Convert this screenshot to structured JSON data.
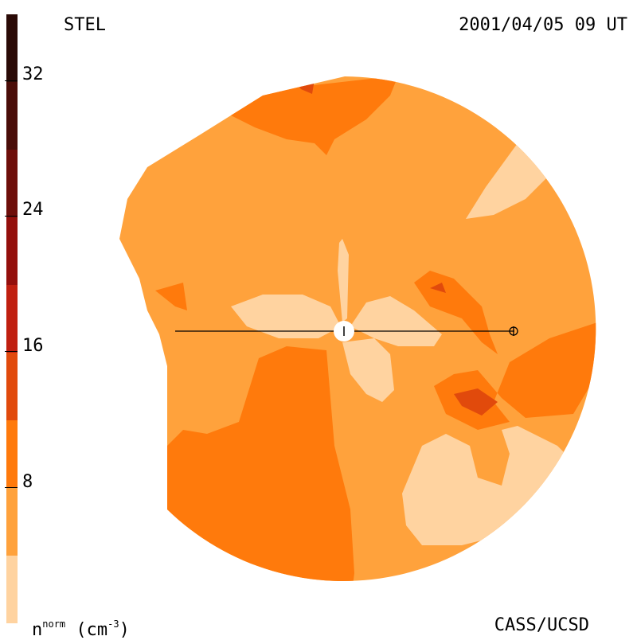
{
  "header": {
    "instrument": "STEL",
    "datetime": "2001/04/05 09 UT"
  },
  "footer": {
    "quantity_base": "n",
    "quantity_sup": "norm",
    "quantity_unit": "(cm",
    "quantity_unit_sup": "-3",
    "quantity_close": ")",
    "credit": "CASS/UCSD"
  },
  "colorbar": {
    "ticks": [
      "32",
      "24",
      "16",
      "8"
    ],
    "bands": [
      {
        "range": [
          36,
          32
        ],
        "color": "#2a0a06"
      },
      {
        "range": [
          32,
          28
        ],
        "color": "#4a0d08"
      },
      {
        "range": [
          28,
          24
        ],
        "color": "#6e0e0a"
      },
      {
        "range": [
          24,
          20
        ],
        "color": "#940f0c"
      },
      {
        "range": [
          20,
          16
        ],
        "color": "#c01f10"
      },
      {
        "range": [
          16,
          12
        ],
        "color": "#e14a0c"
      },
      {
        "range": [
          12,
          8
        ],
        "color": "#ff7a0c"
      },
      {
        "range": [
          8,
          4
        ],
        "color": "#ffa23c"
      },
      {
        "range": [
          4,
          0
        ],
        "color": "#ffd3a0"
      }
    ]
  },
  "map": {
    "levels": {
      "low": "#ffd3a0",
      "base": "#ffa23c",
      "mid": "#ff7a0c",
      "high": "#e14a0c",
      "peak": "#c01f10"
    },
    "markers": [
      "sun-marker",
      "earth-marker"
    ]
  }
}
